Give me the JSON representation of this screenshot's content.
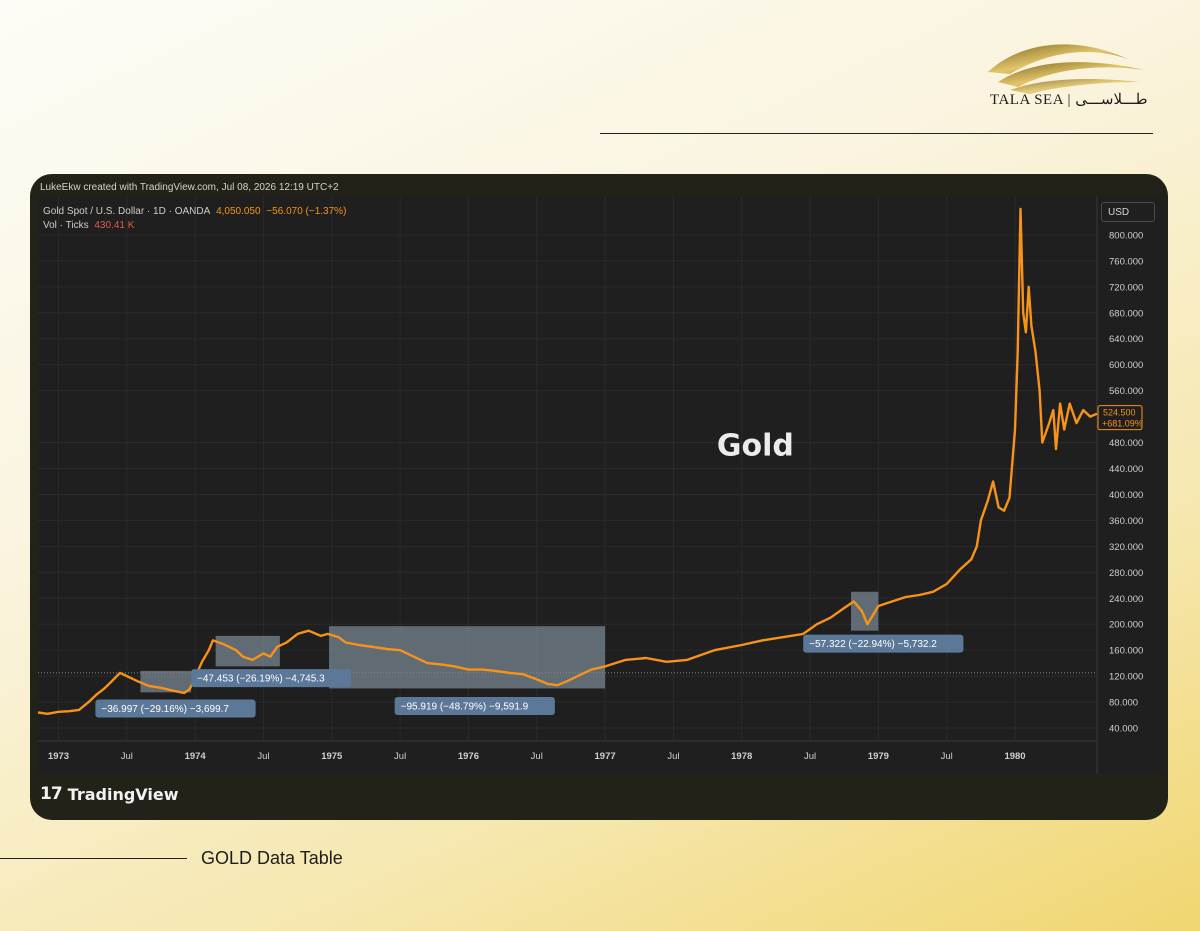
{
  "brand": {
    "name": "TALA SEA",
    "name_arabic": "طـــلاســـی",
    "logo_icon": "golden-wave-logo",
    "gold_color": "#c9a93f"
  },
  "footer_label": "GOLD Data Table",
  "credit": "LukeEkw created with TradingView.com, Jul 08, 2026 12:19 UTC+2",
  "legend": {
    "symbol": "Gold Spot / U.S. Dollar · 1D · OANDA",
    "price": "4,050.050",
    "change": "−56.070 (−1.37%)",
    "vol_label": "Vol · Ticks",
    "vol_value": "430.41 K"
  },
  "currency_button": "USD",
  "watermark": "TradingView",
  "chart_data": {
    "type": "line",
    "title": "Gold",
    "ylabel": "",
    "xlabel": "",
    "ylim": [
      20,
      860
    ],
    "xlim": [
      1972.85,
      1980.6
    ],
    "line_color": "#f7931a",
    "background": "#1f1f1f",
    "grid": true,
    "y_ticks": [
      40,
      80,
      120,
      160,
      200,
      240,
      280,
      320,
      360,
      400,
      440,
      480,
      560,
      600,
      640,
      680,
      720,
      760,
      800
    ],
    "y_tick_labels": [
      "40.000",
      "80.000",
      "120.000",
      "160.000",
      "200.000",
      "240.000",
      "280.000",
      "320.000",
      "360.000",
      "400.000",
      "440.000",
      "480.000",
      "560.000",
      "600.000",
      "640.000",
      "680.000",
      "720.000",
      "760.000",
      "800.000"
    ],
    "x_ticks": [
      {
        "label": "1973",
        "x": 1973.0,
        "major": true
      },
      {
        "label": "Jul",
        "x": 1973.5,
        "major": false
      },
      {
        "label": "1974",
        "x": 1974.0,
        "major": true
      },
      {
        "label": "Jul",
        "x": 1974.5,
        "major": false
      },
      {
        "label": "1975",
        "x": 1975.0,
        "major": true
      },
      {
        "label": "Jul",
        "x": 1975.5,
        "major": false
      },
      {
        "label": "1976",
        "x": 1976.0,
        "major": true
      },
      {
        "label": "Jul",
        "x": 1976.5,
        "major": false
      },
      {
        "label": "1977",
        "x": 1977.0,
        "major": true
      },
      {
        "label": "Jul",
        "x": 1977.5,
        "major": false
      },
      {
        "label": "1978",
        "x": 1978.0,
        "major": true
      },
      {
        "label": "Jul",
        "x": 1978.5,
        "major": false
      },
      {
        "label": "1979",
        "x": 1979.0,
        "major": true
      },
      {
        "label": "Jul",
        "x": 1979.5,
        "major": false
      },
      {
        "label": "1980",
        "x": 1980.0,
        "major": true
      }
    ],
    "series": [
      {
        "x": [
          1972.85,
          1972.92,
          1973.0,
          1973.08,
          1973.15,
          1973.22,
          1973.28,
          1973.33,
          1973.38,
          1973.45,
          1973.5,
          1973.58,
          1973.66,
          1973.75,
          1973.83,
          1973.92,
          1973.96,
          1974.0,
          1974.05,
          1974.1,
          1974.13,
          1974.2,
          1974.25,
          1974.3,
          1974.35,
          1974.42,
          1974.5,
          1974.55,
          1974.6,
          1974.67,
          1974.75,
          1974.83,
          1974.92,
          1974.97,
          1975.05,
          1975.1,
          1975.2,
          1975.3,
          1975.4,
          1975.5,
          1975.6,
          1975.7,
          1975.8,
          1975.9,
          1976.0,
          1976.1,
          1976.2,
          1976.3,
          1976.4,
          1976.5,
          1976.58,
          1976.65,
          1976.72,
          1976.8,
          1976.9,
          1977.0,
          1977.15,
          1977.3,
          1977.45,
          1977.6,
          1977.8,
          1978.0,
          1978.15,
          1978.3,
          1978.45,
          1978.55,
          1978.65,
          1978.75,
          1978.82,
          1978.88,
          1978.92,
          1979.0,
          1979.1,
          1979.2,
          1979.3,
          1979.4,
          1979.5,
          1979.6,
          1979.68,
          1979.72,
          1979.75,
          1979.8,
          1979.84,
          1979.88,
          1979.92,
          1979.96,
          1980.0,
          1980.02,
          1980.04,
          1980.06,
          1980.08,
          1980.1,
          1980.12,
          1980.15,
          1980.18,
          1980.2,
          1980.25,
          1980.28,
          1980.3,
          1980.33,
          1980.36,
          1980.4,
          1980.45,
          1980.5,
          1980.55,
          1980.6
        ],
        "values": [
          64,
          62,
          65,
          66,
          68,
          80,
          92,
          100,
          110,
          125,
          120,
          112,
          105,
          102,
          98,
          94,
          100,
          118,
          142,
          160,
          175,
          170,
          165,
          160,
          150,
          145,
          155,
          150,
          165,
          172,
          185,
          190,
          182,
          185,
          180,
          172,
          168,
          165,
          162,
          160,
          150,
          140,
          138,
          135,
          130,
          130,
          128,
          125,
          123,
          115,
          108,
          106,
          112,
          120,
          130,
          135,
          145,
          148,
          142,
          145,
          160,
          168,
          175,
          180,
          185,
          200,
          210,
          225,
          235,
          220,
          200,
          228,
          235,
          242,
          245,
          250,
          262,
          285,
          300,
          320,
          360,
          390,
          420,
          380,
          375,
          395,
          500,
          620,
          840,
          680,
          650,
          720,
          660,
          620,
          560,
          480,
          510,
          530,
          470,
          540,
          500,
          540,
          510,
          530,
          520,
          524.5
        ]
      }
    ],
    "reference_line": 125,
    "last_price": {
      "value": "524.500",
      "change": "+681.09%"
    },
    "drawdowns": [
      {
        "x0": 1973.6,
        "x1": 1973.97,
        "y_top": 128,
        "y_bottom": 95,
        "label": "−36.997 (−29.16%) −3,699.7",
        "label_x": 1973.27,
        "label_y": 70
      },
      {
        "x0": 1974.15,
        "x1": 1974.62,
        "y_top": 182,
        "y_bottom": 135,
        "label": "−47.453 (−26.19%) −4,745.3",
        "label_x": 1973.97,
        "label_y": 117
      },
      {
        "x0": 1974.98,
        "x1": 1977.0,
        "y_top": 197,
        "y_bottom": 101,
        "label": "−95.919 (−48.79%) −9,591.9",
        "label_x": 1975.46,
        "label_y": 74
      },
      {
        "x0": 1978.8,
        "x1": 1979.0,
        "y_top": 250,
        "y_bottom": 190,
        "label": "−57.322 (−22.94%) −5,732.2",
        "label_x": 1978.45,
        "label_y": 170
      }
    ]
  }
}
